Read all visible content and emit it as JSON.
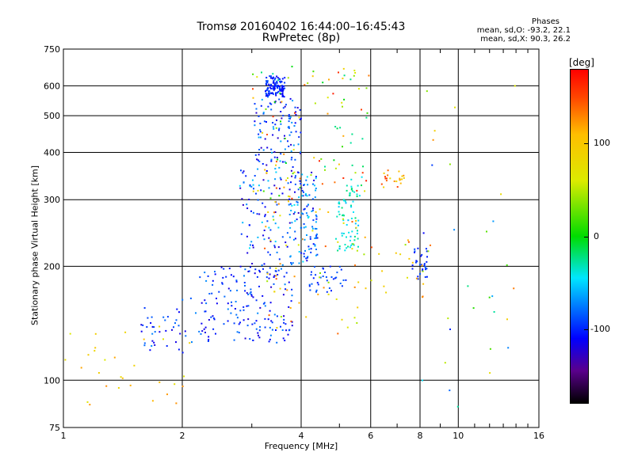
{
  "chart_data": {
    "type": "scatter",
    "title": "Tromsø 20160402 16:44:00–16:45:43",
    "subtitle": "RwPretec (8p)",
    "annotation": {
      "header": "Phases",
      "o_stats": "mean, sd,O: -93.2, 22.1",
      "x_stats": "mean, sd,X:  90.3, 26.2"
    },
    "xlabel": "Frequency [MHz]",
    "ylabel": "Stationary phase Virtual Height [km]",
    "xscale": "log",
    "yscale": "log",
    "xlim": [
      1,
      16
    ],
    "ylim": [
      75,
      750
    ],
    "xticks": [
      1,
      2,
      4,
      6,
      8,
      10,
      16
    ],
    "yticks": [
      75,
      100,
      200,
      300,
      400,
      500,
      600,
      750
    ],
    "grid": true,
    "colorbar": {
      "label": "[deg]",
      "range": [
        -180,
        180
      ],
      "ticks": [
        100,
        0,
        -100
      ]
    },
    "series": [
      {
        "regions": [
          {
            "f": [
              3.25,
              3.65
            ],
            "h": [
              560,
              640
            ],
            "n": 120,
            "phase": [
              -115,
              -85
            ]
          },
          {
            "f": [
              3.05,
              4.0
            ],
            "h": [
              360,
              560
            ],
            "n": 110,
            "phase": [
              -130,
              -60
            ]
          },
          {
            "f": [
              2.8,
              4.4
            ],
            "h": [
              200,
              360
            ],
            "n": 170,
            "phase": [
              -130,
              -40
            ]
          },
          {
            "f": [
              2.2,
              3.8
            ],
            "h": [
              125,
              200
            ],
            "n": 170,
            "phase": [
              -125,
              -70
            ]
          },
          {
            "f": [
              1.55,
              2.3
            ],
            "h": [
              118,
              165
            ],
            "n": 45,
            "phase": [
              -120,
              -70
            ]
          },
          {
            "f": [
              4.0,
              4.4
            ],
            "h": [
              210,
              330
            ],
            "n": 45,
            "phase": [
              -110,
              -40
            ]
          },
          {
            "f": [
              4.9,
              5.6
            ],
            "h": [
              220,
              300
            ],
            "n": 55,
            "phase": [
              -60,
              -20
            ]
          },
          {
            "f": [
              5.2,
              5.7
            ],
            "h": [
              305,
              345
            ],
            "n": 18,
            "phase": [
              -45,
              -15
            ]
          },
          {
            "f": [
              4.2,
              5.2
            ],
            "h": [
              170,
              200
            ],
            "n": 35,
            "phase": [
              -105,
              -80
            ]
          },
          {
            "f": [
              7.65,
              8.4
            ],
            "h": [
              185,
              225
            ],
            "n": 30,
            "phase": [
              -110,
              -85
            ]
          },
          {
            "f": [
              6.4,
              7.3
            ],
            "h": [
              320,
              360
            ],
            "n": 22,
            "phase": [
              70,
              160
            ]
          },
          {
            "f": [
              3.0,
              6.0
            ],
            "h": [
              300,
              680
            ],
            "n": 100,
            "phase": [
              -30,
              170
            ]
          },
          {
            "f": [
              3.2,
              5.6
            ],
            "h": [
              130,
              300
            ],
            "n": 60,
            "phase": [
              30,
              150
            ]
          },
          {
            "f": [
              1.0,
              2.1
            ],
            "h": [
              85,
              140
            ],
            "n": 30,
            "phase": [
              60,
              130
            ]
          },
          {
            "f": [
              5.3,
              9.0
            ],
            "h": [
              160,
              240
            ],
            "n": 25,
            "phase": [
              30,
              150
            ]
          },
          {
            "f": [
              8.0,
              14.0
            ],
            "h": [
              80,
              620
            ],
            "n": 30,
            "phase": [
              -120,
              170
            ]
          }
        ]
      }
    ]
  }
}
